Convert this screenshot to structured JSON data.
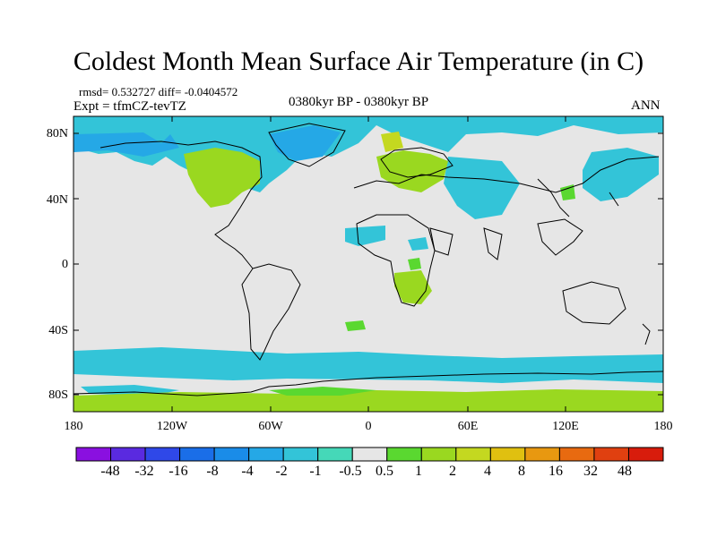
{
  "title": "Coldest Month Mean Surface Air Temperature (in C)",
  "stats": "rmsd= 0.532727 diff= -0.0404572",
  "experiment": "Expt = tfmCZ-tevTZ",
  "period": "0380kyr BP - 0380kyr BP",
  "season": "ANN",
  "lat_labels": [
    "80N",
    "40N",
    "0",
    "40S",
    "80S"
  ],
  "lon_labels": [
    "180",
    "120W",
    "60W",
    "0",
    "60E",
    "120E",
    "180"
  ],
  "colorbar": {
    "labels": [
      "-48",
      "-32",
      "-16",
      "-8",
      "-4",
      "-2",
      "-1",
      "-0.5",
      "0.5",
      "1",
      "2",
      "4",
      "8",
      "16",
      "32",
      "48"
    ],
    "colors": [
      "#8a10e0",
      "#5a2ae0",
      "#2f48e8",
      "#1a6ee8",
      "#1a8ce8",
      "#25a8e6",
      "#33c4d8",
      "#45d8b8",
      "#e6e6e6",
      "#5ad830",
      "#9ad820",
      "#c4d820",
      "#e0c010",
      "#e89810",
      "#e86a10",
      "#e04010",
      "#d81c0c"
    ]
  },
  "colors": {
    "land_background": "#e6e6e6",
    "cold_anomaly": "#33c4d8",
    "warm_anomaly": "#9ad820",
    "coast": "#000000"
  }
}
